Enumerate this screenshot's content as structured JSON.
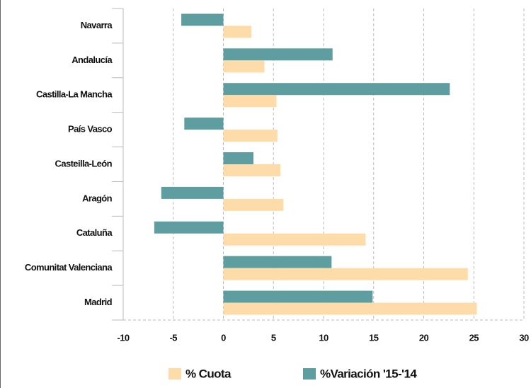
{
  "chart_data": {
    "type": "bar",
    "orientation": "horizontal",
    "categories": [
      "Navarra",
      "Andalucía",
      "Castilla-La Mancha",
      "País Vasco",
      "Casteilla-León",
      "Aragón",
      "Cataluña",
      "Comunitat Valenciana",
      "Madrid"
    ],
    "series": [
      {
        "name": "%Variación '15-'14",
        "color": "#5f9ea0",
        "values": [
          -4.2,
          10.9,
          22.6,
          -3.9,
          3.0,
          -6.2,
          -6.9,
          10.8,
          14.9
        ]
      },
      {
        "name": "% Cuota",
        "color": "#fddcaa",
        "values": [
          2.8,
          4.1,
          5.3,
          5.4,
          5.7,
          6.0,
          14.2,
          24.4,
          25.3
        ]
      }
    ],
    "xlim": [
      -10,
      30
    ],
    "xticks": [
      -10,
      -5,
      0,
      5,
      10,
      15,
      20,
      25,
      30
    ],
    "grid": true,
    "legend": "bottom"
  }
}
